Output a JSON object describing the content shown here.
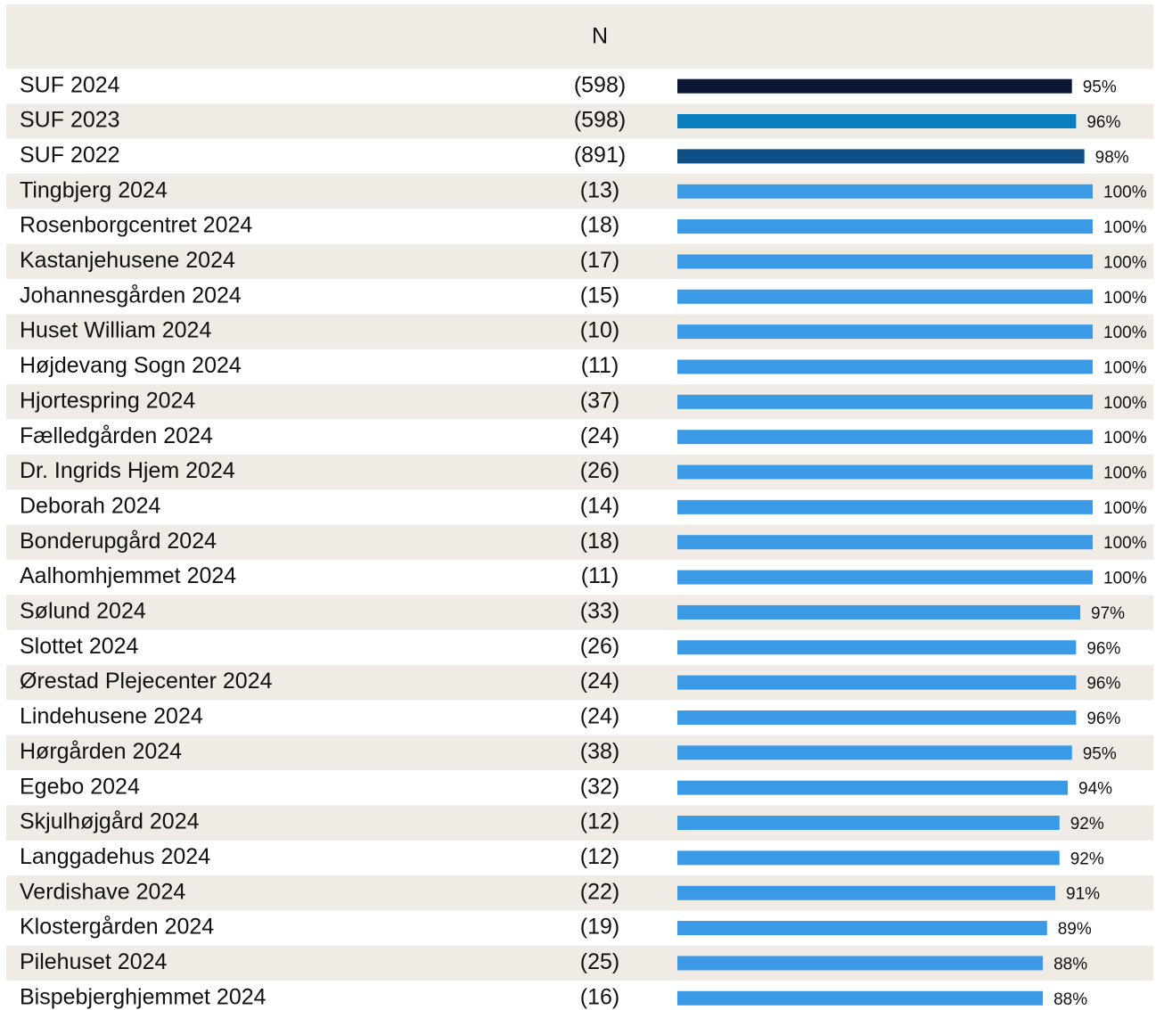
{
  "chart_data": {
    "type": "bar",
    "n_header": "N",
    "categories": [
      "SUF 2024",
      "SUF 2023",
      "SUF 2022",
      "Tingbjerg 2024",
      "Rosenborgcentret 2024",
      "Kastanjehusene 2024",
      "Johannesgården 2024",
      "Huset William 2024",
      "Højdevang Sogn 2024",
      "Hjortespring 2024",
      "Fælledgården 2024",
      "Dr. Ingrids Hjem 2024",
      "Deborah 2024",
      "Bonderupgård 2024",
      "Aalhomhjemmet 2024",
      "Sølund 2024",
      "Slottet 2024",
      "Ørestad Plejecenter 2024",
      "Lindehusene 2024",
      "Hørgården 2024",
      "Egebo 2024",
      "Skjulhøjgård 2024",
      "Langgadehus 2024",
      "Verdishave 2024",
      "Klostergården 2024",
      "Pilehuset 2024",
      "Bispebjerghjemmet 2024"
    ],
    "n": [
      "(598)",
      "(598)",
      "(891)",
      "(13)",
      "(18)",
      "(17)",
      "(15)",
      "(10)",
      "(11)",
      "(37)",
      "(24)",
      "(26)",
      "(14)",
      "(18)",
      "(11)",
      "(33)",
      "(26)",
      "(24)",
      "(24)",
      "(38)",
      "(32)",
      "(12)",
      "(12)",
      "(22)",
      "(19)",
      "(25)",
      "(16)"
    ],
    "values": [
      95,
      96,
      98,
      100,
      100,
      100,
      100,
      100,
      100,
      100,
      100,
      100,
      100,
      100,
      100,
      97,
      96,
      96,
      96,
      95,
      94,
      92,
      92,
      91,
      89,
      88,
      88
    ],
    "value_labels": [
      "95%",
      "96%",
      "98%",
      "100%",
      "100%",
      "100%",
      "100%",
      "100%",
      "100%",
      "100%",
      "100%",
      "100%",
      "100%",
      "100%",
      "100%",
      "97%",
      "96%",
      "96%",
      "96%",
      "95%",
      "94%",
      "92%",
      "92%",
      "91%",
      "89%",
      "88%",
      "88%"
    ],
    "colors": [
      "#0a1633",
      "#0a7fc0",
      "#0f4f86",
      "#3a9ae6",
      "#3a9ae6",
      "#3a9ae6",
      "#3a9ae6",
      "#3a9ae6",
      "#3a9ae6",
      "#3a9ae6",
      "#3a9ae6",
      "#3a9ae6",
      "#3a9ae6",
      "#3a9ae6",
      "#3a9ae6",
      "#3a9ae6",
      "#3a9ae6",
      "#3a9ae6",
      "#3a9ae6",
      "#3a9ae6",
      "#3a9ae6",
      "#3a9ae6",
      "#3a9ae6",
      "#3a9ae6",
      "#3a9ae6",
      "#3a9ae6",
      "#3a9ae6"
    ],
    "xlim": [
      0,
      100
    ]
  }
}
